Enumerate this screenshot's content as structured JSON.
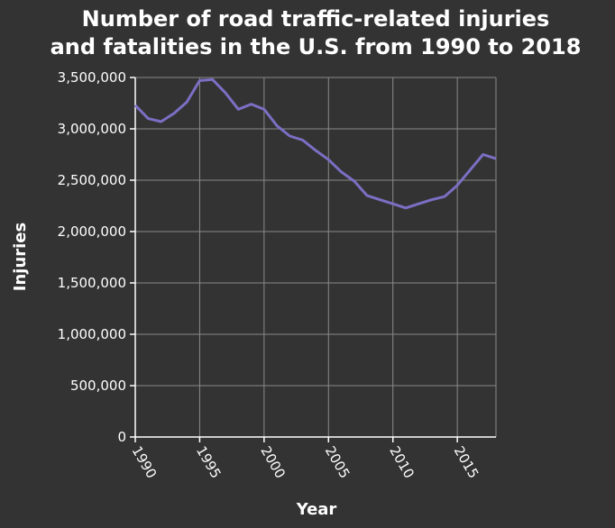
{
  "chart_data": {
    "type": "line",
    "title_lines": [
      "Number of road traffic-related injuries",
      "and fatalities in the U.S. from 1990 to 2018"
    ],
    "xlabel": "Year",
    "ylabel": "Injuries",
    "xlim": [
      1990,
      2018
    ],
    "ylim": [
      0,
      3500000
    ],
    "x_ticks": [
      1990,
      1995,
      2000,
      2005,
      2010,
      2015
    ],
    "x_tick_labels": [
      "1990",
      "1995",
      "2000",
      "2005",
      "2010",
      "2015"
    ],
    "y_ticks": [
      0,
      500000,
      1000000,
      1500000,
      2000000,
      2500000,
      3000000,
      3500000
    ],
    "y_tick_labels": [
      "0",
      "500,000",
      "1,000,000",
      "1,500,000",
      "2,000,000",
      "2,500,000",
      "3,000,000",
      "3,500,000"
    ],
    "grid": true,
    "colors": {
      "background": "#333333",
      "line": "#7b6fc4"
    },
    "series": [
      {
        "x": [
          1990,
          1991,
          1992,
          1993,
          1994,
          1995,
          1996,
          1997,
          1998,
          1999,
          2000,
          2001,
          2002,
          2003,
          2004,
          2005,
          2006,
          2007,
          2008,
          2009,
          2010,
          2011,
          2012,
          2013,
          2014,
          2015,
          2016,
          2017,
          2018
        ],
        "values": [
          3230000,
          3100000,
          3070000,
          3150000,
          3260000,
          3470000,
          3480000,
          3350000,
          3190000,
          3240000,
          3190000,
          3030000,
          2930000,
          2890000,
          2790000,
          2700000,
          2580000,
          2490000,
          2350000,
          2310000,
          2270000,
          2230000,
          2270000,
          2310000,
          2340000,
          2450000,
          2600000,
          2750000,
          2710000
        ]
      }
    ]
  }
}
